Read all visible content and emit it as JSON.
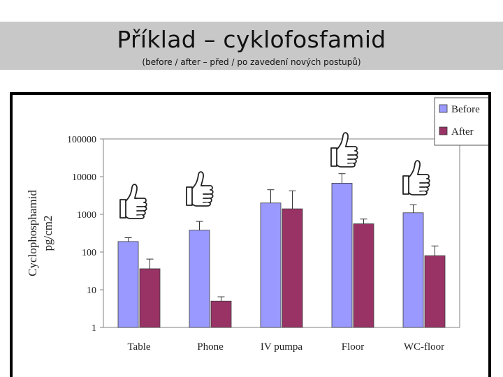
{
  "slide": {
    "title": "Příklad – cyklofosfamid",
    "subtitle": "(before / after – před / po zavedení nových postupů)"
  },
  "icons": [
    "thumbs-up-icon"
  ],
  "chart_data": {
    "type": "bar",
    "ylabel": "Cyclophosphamid",
    "ylabel_unit": "pg/cm2",
    "yscale": "log",
    "ylim": [
      1,
      100000
    ],
    "yticks": [
      "100000",
      "10000",
      "1000",
      "100",
      "10",
      "1"
    ],
    "categories": [
      "Table",
      "Phone",
      "IV pumpa",
      "Floor",
      "WC-floor"
    ],
    "series": [
      {
        "name": "Before",
        "color": "#9999ff",
        "values": [
          190,
          380,
          2000,
          6700,
          1100
        ],
        "error_high": [
          240,
          650,
          4500,
          12000,
          1800
        ]
      },
      {
        "name": "After",
        "color": "#993366",
        "values": [
          36,
          5,
          1400,
          560,
          80
        ],
        "error_high": [
          65,
          6.5,
          4200,
          750,
          145
        ]
      }
    ],
    "thumbs_up_categories": [
      "Table",
      "Phone",
      "Floor",
      "WC-floor"
    ],
    "legend_position": "top-right",
    "grid": false
  }
}
